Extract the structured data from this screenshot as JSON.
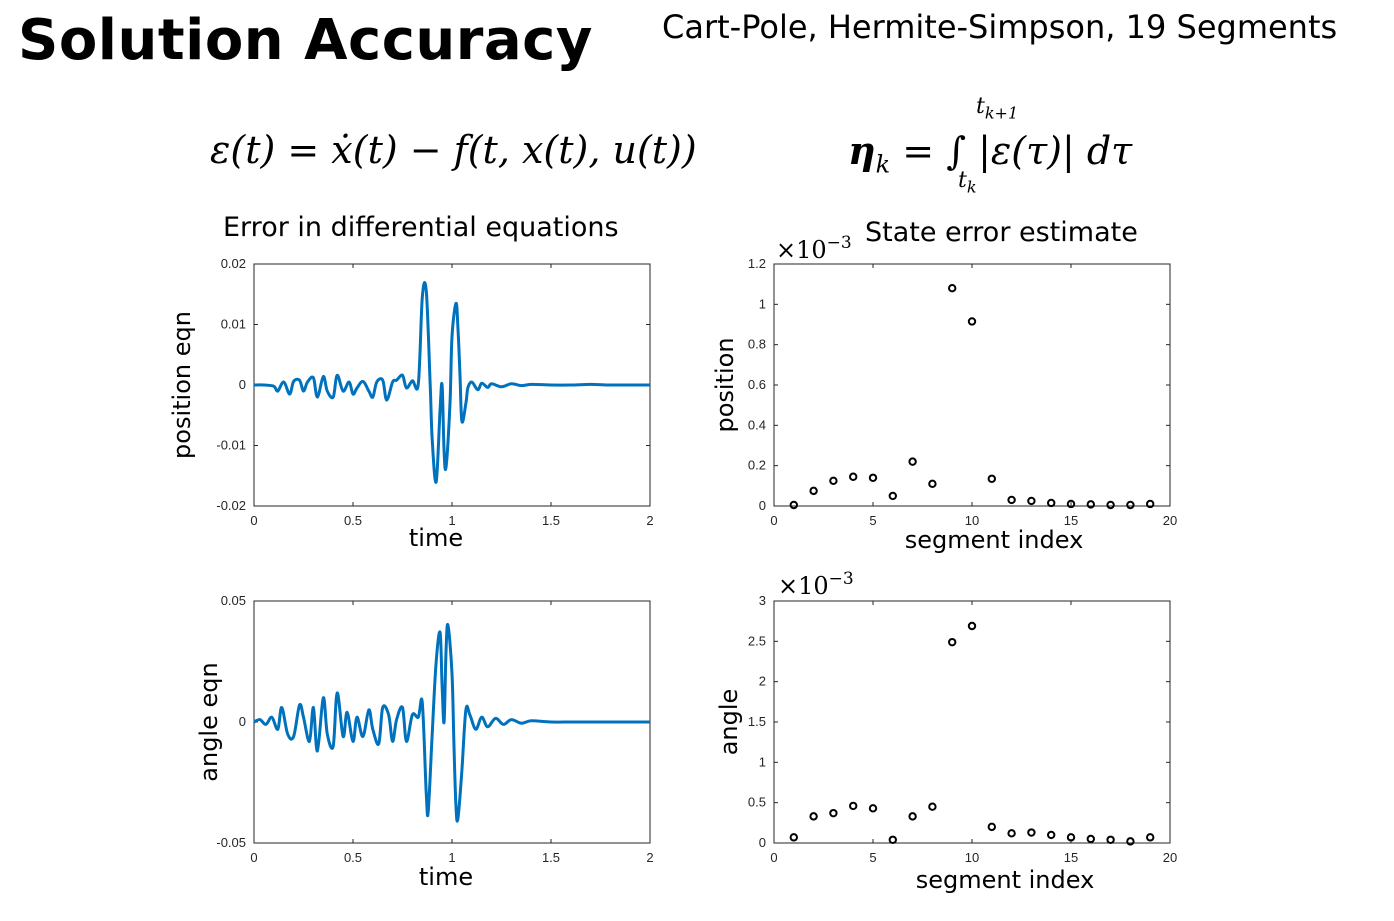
{
  "slide": {
    "title": "Solution Accuracy",
    "subtitle": "Cart-Pole, Hermite-Simpson, 19 Segments"
  },
  "equations": {
    "defect": "ε(t) = ẋ(t) − f(t, x(t), u(t))",
    "error_lhs": "η",
    "error_sub": "k",
    "error_body": "= ∫ |ε(τ)| dτ",
    "error_upper": "t",
    "error_upper_sub": "k+1",
    "error_lower": "t",
    "error_lower_sub": "k"
  },
  "sections": {
    "left_title": "Error in differential equations",
    "right_title": "State error estimate"
  },
  "colors": {
    "line": "#0072BD",
    "axis": "#262626",
    "marker": "#000000"
  },
  "chart_data": [
    {
      "id": "position-eqn",
      "type": "line",
      "xlabel": "time",
      "ylabel": "position eqn",
      "xlim": [
        0,
        2
      ],
      "ylim": [
        -0.02,
        0.02
      ],
      "xticks": [
        0,
        0.5,
        1,
        1.5,
        2
      ],
      "xtick_labels": [
        "0",
        "0.5",
        "1",
        "1.5",
        "2"
      ],
      "yticks": [
        -0.02,
        -0.01,
        0,
        0.01,
        0.02
      ],
      "ytick_labels": [
        "-0.02",
        "-0.01",
        "0",
        "0.01",
        "0.02"
      ],
      "series": [
        {
          "x": [
            0,
            0.05,
            0.1,
            0.12,
            0.15,
            0.18,
            0.2,
            0.23,
            0.25,
            0.27,
            0.3,
            0.32,
            0.35,
            0.37,
            0.4,
            0.42,
            0.45,
            0.48,
            0.5,
            0.52,
            0.55,
            0.58,
            0.6,
            0.62,
            0.65,
            0.67,
            0.7,
            0.72,
            0.75,
            0.77,
            0.8,
            0.83,
            0.85,
            0.87,
            0.89,
            0.9,
            0.92,
            0.94,
            0.95,
            0.96,
            0.97,
            0.99,
            1.0,
            1.02,
            1.03,
            1.04,
            1.05,
            1.07,
            1.08,
            1.1,
            1.13,
            1.15,
            1.18,
            1.2,
            1.25,
            1.3,
            1.35,
            1.4,
            1.5,
            1.6,
            1.7,
            1.8,
            1.9,
            2.0
          ],
          "y": [
            0,
            0,
            -0.0002,
            -0.001,
            0.0005,
            -0.0015,
            0.0006,
            0.0008,
            -0.001,
            0.0005,
            0.0012,
            -0.002,
            0.0014,
            -0.001,
            -0.002,
            0.0016,
            -0.001,
            0.0005,
            -0.0015,
            -0.0005,
            0.0006,
            -0.001,
            -0.002,
            0.0005,
            0.0008,
            -0.0025,
            0.0005,
            0.0008,
            0.0016,
            -0.0005,
            0.0007,
            0.0002,
            0.0145,
            0.0155,
            0.0,
            -0.009,
            -0.016,
            -0.004,
            0.0,
            -0.011,
            -0.0135,
            -0.003,
            0.008,
            0.0135,
            0.0095,
            0.002,
            -0.006,
            -0.003,
            -0.0005,
            0.0005,
            -0.0008,
            0.0003,
            -0.0004,
            0.0002,
            -0.0003,
            0.0002,
            -0.0001,
            0.0001,
            0,
            0,
            0.0001,
            0,
            0,
            0
          ]
        }
      ]
    },
    {
      "id": "position-error",
      "type": "scatter",
      "xlabel": "segment index",
      "ylabel": "position",
      "exponent": "×10",
      "exponent_power": "−3",
      "xlim": [
        0,
        20
      ],
      "ylim": [
        0,
        1.2
      ],
      "xticks": [
        0,
        5,
        10,
        15,
        20
      ],
      "xtick_labels": [
        "0",
        "5",
        "10",
        "15",
        "20"
      ],
      "yticks": [
        0,
        0.2,
        0.4,
        0.6,
        0.8,
        1,
        1.2
      ],
      "ytick_labels": [
        "0",
        "0.2",
        "0.4",
        "0.6",
        "0.8",
        "1",
        "1.2"
      ],
      "series": [
        {
          "x": [
            1,
            2,
            3,
            4,
            5,
            6,
            7,
            8,
            9,
            10,
            11,
            12,
            13,
            14,
            15,
            16,
            17,
            18,
            19
          ],
          "y": [
            0.005,
            0.075,
            0.125,
            0.145,
            0.14,
            0.05,
            0.22,
            0.11,
            1.08,
            0.915,
            0.135,
            0.03,
            0.025,
            0.015,
            0.01,
            0.008,
            0.005,
            0.005,
            0.01
          ]
        }
      ]
    },
    {
      "id": "angle-eqn",
      "type": "line",
      "xlabel": "time",
      "ylabel": "angle eqn",
      "xlim": [
        0,
        2
      ],
      "ylim": [
        -0.05,
        0.05
      ],
      "xticks": [
        0,
        0.5,
        1,
        1.5,
        2
      ],
      "xtick_labels": [
        "0",
        "0.5",
        "1",
        "1.5",
        "2"
      ],
      "yticks": [
        -0.05,
        0,
        0.05
      ],
      "ytick_labels": [
        "-0.05",
        "0",
        "0.05"
      ],
      "series": [
        {
          "x": [
            0,
            0.03,
            0.06,
            0.09,
            0.12,
            0.14,
            0.17,
            0.2,
            0.23,
            0.25,
            0.28,
            0.3,
            0.32,
            0.35,
            0.37,
            0.4,
            0.42,
            0.45,
            0.47,
            0.5,
            0.52,
            0.55,
            0.58,
            0.6,
            0.63,
            0.65,
            0.68,
            0.7,
            0.72,
            0.75,
            0.77,
            0.8,
            0.83,
            0.85,
            0.87,
            0.88,
            0.9,
            0.92,
            0.94,
            0.95,
            0.96,
            0.97,
            0.98,
            1.0,
            1.01,
            1.02,
            1.03,
            1.05,
            1.07,
            1.09,
            1.12,
            1.15,
            1.18,
            1.22,
            1.26,
            1.3,
            1.35,
            1.4,
            1.5,
            1.6,
            1.7,
            1.8,
            1.9,
            2.0
          ],
          "y": [
            0,
            0.001,
            -0.001,
            0.002,
            -0.003,
            0.006,
            -0.005,
            -0.006,
            0.007,
            0.002,
            -0.008,
            0.006,
            -0.012,
            0.01,
            -0.005,
            -0.01,
            0.012,
            -0.006,
            0.004,
            -0.008,
            0.002,
            -0.006,
            0.005,
            -0.003,
            -0.009,
            0.006,
            0.003,
            -0.008,
            0.001,
            0.006,
            -0.008,
            0.003,
            0.002,
            0.008,
            -0.03,
            -0.037,
            -0.005,
            0.025,
            0.037,
            0.015,
            0.0,
            0.03,
            0.04,
            0.02,
            -0.01,
            -0.035,
            -0.04,
            -0.02,
            0.005,
            0.003,
            -0.003,
            0.002,
            -0.002,
            0.0015,
            -0.001,
            0.001,
            -0.0005,
            0.0005,
            0,
            0,
            0,
            0,
            0,
            0
          ]
        }
      ]
    },
    {
      "id": "angle-error",
      "type": "scatter",
      "xlabel": "segment index",
      "ylabel": "angle",
      "exponent": "×10",
      "exponent_power": "−3",
      "xlim": [
        0,
        20
      ],
      "ylim": [
        0,
        3
      ],
      "xticks": [
        0,
        5,
        10,
        15,
        20
      ],
      "xtick_labels": [
        "0",
        "5",
        "10",
        "15",
        "20"
      ],
      "yticks": [
        0,
        0.5,
        1,
        1.5,
        2,
        2.5,
        3
      ],
      "ytick_labels": [
        "0",
        "0.5",
        "1",
        "1.5",
        "2",
        "2.5",
        "3"
      ],
      "series": [
        {
          "x": [
            1,
            2,
            3,
            4,
            5,
            6,
            7,
            8,
            9,
            10,
            11,
            12,
            13,
            14,
            15,
            16,
            17,
            18,
            19
          ],
          "y": [
            0.07,
            0.33,
            0.37,
            0.46,
            0.43,
            0.04,
            0.33,
            0.45,
            2.49,
            2.69,
            0.2,
            0.12,
            0.13,
            0.1,
            0.07,
            0.05,
            0.04,
            0.02,
            0.07
          ]
        }
      ]
    }
  ]
}
